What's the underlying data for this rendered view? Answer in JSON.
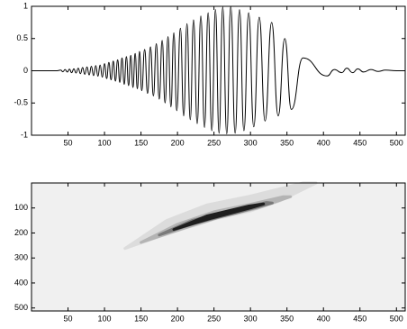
{
  "chart_data": [
    {
      "type": "line",
      "color": "#000000",
      "x": [
        1,
        35,
        40,
        43,
        46,
        49,
        52,
        55,
        58,
        61,
        64,
        67,
        70,
        73,
        76,
        79,
        82,
        85,
        88,
        91,
        94,
        97,
        100,
        103,
        106,
        109,
        112,
        115,
        118,
        121,
        124,
        127,
        130,
        133,
        136,
        139,
        142,
        145,
        148,
        151,
        155,
        159,
        163,
        167,
        171,
        175,
        179,
        183,
        187,
        191,
        195,
        199,
        204,
        208.5,
        213,
        217.5,
        222,
        227,
        232,
        237,
        242,
        247,
        252,
        257,
        262,
        267.5,
        273,
        279,
        285,
        291,
        297.5,
        304.5,
        312,
        320,
        329,
        338,
        347,
        356,
        372,
        405,
        415,
        425,
        432,
        440,
        447,
        455,
        465,
        475,
        485,
        500,
        512
      ],
      "values": [
        0,
        0,
        0.01,
        -0.015,
        0.02,
        -0.02,
        0.025,
        -0.03,
        0.03,
        -0.035,
        0.04,
        -0.045,
        0.05,
        -0.055,
        0.06,
        -0.065,
        0.07,
        -0.075,
        0.08,
        -0.085,
        0.09,
        -0.1,
        0.11,
        -0.12,
        0.13,
        -0.14,
        0.15,
        -0.16,
        0.17,
        -0.18,
        0.2,
        -0.21,
        0.22,
        -0.23,
        0.24,
        -0.26,
        0.27,
        -0.28,
        0.3,
        -0.31,
        0.33,
        -0.35,
        0.37,
        -0.39,
        0.42,
        -0.44,
        0.47,
        -0.5,
        0.53,
        -0.56,
        0.59,
        -0.62,
        0.66,
        -0.7,
        0.73,
        -0.76,
        0.79,
        -0.82,
        0.85,
        -0.88,
        0.9,
        -0.93,
        0.95,
        -0.97,
        0.99,
        -0.98,
        1,
        -0.97,
        0.95,
        -0.93,
        0.9,
        -0.87,
        0.83,
        -0.78,
        0.75,
        -0.7,
        0.5,
        -0.6,
        0.2,
        -0.08,
        0.02,
        -0.03,
        0.04,
        -0.03,
        0.03,
        -0.02,
        0.02,
        -0.01,
        0.01,
        0,
        0
      ],
      "xlim": [
        0,
        512
      ],
      "ylim": [
        -1,
        1
      ],
      "xticks": [
        50,
        100,
        150,
        200,
        250,
        300,
        350,
        400,
        450,
        500
      ],
      "yticks": [
        -1,
        -0.5,
        0,
        0.5,
        1
      ]
    },
    {
      "type": "image",
      "background": "#f0f0f0",
      "xlim": [
        0,
        512
      ],
      "ylim": [
        0,
        512
      ],
      "y_reversed": true,
      "xticks": [
        50,
        100,
        150,
        200,
        250,
        300,
        350,
        400,
        450,
        500
      ],
      "yticks": [
        100,
        200,
        300,
        400,
        500
      ],
      "levels": [
        {
          "color": "#dcdcdc",
          "x": [
            128,
            190,
            250,
            300,
            340,
            390,
            372,
            300,
            240,
            185
          ],
          "y": [
            262,
            200,
            145,
            112,
            72,
            0,
            0,
            52,
            88,
            150
          ]
        },
        {
          "color": "#b4b4b4",
          "x": [
            150,
            210,
            260,
            310,
            355,
            345,
            300,
            250,
            200
          ],
          "y": [
            238,
            180,
            135,
            100,
            55,
            55,
            85,
            115,
            165
          ]
        },
        {
          "color": "#7a7a7a",
          "x": [
            175,
            225,
            280,
            330,
            322,
            275,
            220
          ],
          "y": [
            208,
            160,
            120,
            80,
            78,
            110,
            150
          ]
        },
        {
          "color": "#1e1e1e",
          "x": [
            195,
            245,
            300,
            318,
            298,
            240
          ],
          "y": [
            186,
            142,
            100,
            84,
            92,
            132
          ]
        }
      ]
    }
  ]
}
